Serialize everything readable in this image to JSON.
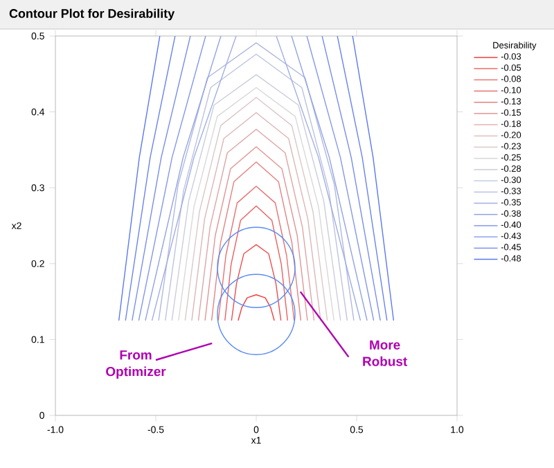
{
  "chart_data": {
    "type": "line",
    "title": "Contour Plot for Desirability",
    "xlabel": "x1",
    "ylabel": "x2",
    "legend_title": "Desirability",
    "legend": "right",
    "xlim": [
      -1,
      1
    ],
    "ylim": [
      0,
      0.5
    ],
    "xticks": [
      {
        "value": -1,
        "label": "-1.0"
      },
      {
        "value": -0.5,
        "label": "-0.5"
      },
      0,
      0.5,
      {
        "value": 1,
        "label": "1.0"
      }
    ],
    "yticks": [
      0,
      0.1,
      0.2,
      0.3,
      0.4,
      0.5
    ],
    "annotations": [
      "From Optimizer",
      {
        "text": "More Robust",
        "x": 0.22,
        "y": 0.163
      }
    ],
    "series": [
      {
        "name": "-0.03",
        "color": "#f03c3c",
        "x": [
          -0.09,
          -0.072,
          -0.045,
          0,
          0.045,
          0.072,
          0.09
        ],
        "values": [
          0.125,
          0.142,
          0.155,
          0.159,
          0.155,
          0.142,
          0.125
        ]
      },
      {
        "name": "-0.05",
        "color": "#ed4d4d",
        "x": [
          -0.123,
          -0.098,
          -0.062,
          0,
          0.062,
          0.098,
          0.123
        ],
        "values": [
          0.125,
          0.174,
          0.213,
          0.225,
          0.213,
          0.174,
          0.125
        ]
      },
      {
        "name": "-0.08",
        "color": "#eb5f5f",
        "x": [
          -0.156,
          -0.125,
          -0.078,
          0,
          0.078,
          0.125,
          0.156
        ],
        "values": [
          0.125,
          0.199,
          0.257,
          0.276,
          0.257,
          0.199,
          0.125
        ]
      },
      {
        "name": "-0.10",
        "color": "#e87070",
        "x": [
          -0.189,
          -0.151,
          -0.095,
          0,
          0.095,
          0.151,
          0.189
        ],
        "values": [
          0.125,
          0.211,
          0.28,
          0.302,
          0.28,
          0.211,
          0.125
        ]
      },
      {
        "name": "-0.13",
        "color": "#e58181",
        "x": [
          -0.222,
          -0.178,
          -0.111,
          0,
          0.111,
          0.178,
          0.222
        ],
        "values": [
          0.125,
          0.227,
          0.308,
          0.334,
          0.308,
          0.227,
          0.125
        ]
      },
      {
        "name": "-0.15",
        "color": "#e39393",
        "x": [
          -0.255,
          -0.204,
          -0.128,
          0,
          0.128,
          0.204,
          0.255
        ],
        "values": [
          0.125,
          0.237,
          0.325,
          0.354,
          0.325,
          0.237,
          0.125
        ]
      },
      {
        "name": "-0.18",
        "color": "#e0a4a4",
        "x": [
          -0.288,
          -0.23,
          -0.144,
          0,
          0.144,
          0.23,
          0.288
        ],
        "values": [
          0.125,
          0.248,
          0.346,
          0.377,
          0.346,
          0.248,
          0.125
        ]
      },
      {
        "name": "-0.20",
        "color": "#ddb5b5",
        "x": [
          -0.321,
          -0.257,
          -0.161,
          0,
          0.161,
          0.257,
          0.321
        ],
        "values": [
          0.125,
          0.259,
          0.365,
          0.399,
          0.365,
          0.259,
          0.125
        ]
      },
      {
        "name": "-0.23",
        "color": "#dbc7c7",
        "x": [
          -0.354,
          -0.283,
          -0.177,
          0,
          0.177,
          0.283,
          0.354
        ],
        "values": [
          0.125,
          0.268,
          0.382,
          0.419,
          0.382,
          0.268,
          0.125
        ]
      },
      {
        "name": "-0.25",
        "color": "#d8d8d8",
        "x": [
          -0.387,
          -0.31,
          -0.194,
          0,
          0.194,
          0.31,
          0.387
        ],
        "values": [
          0.125,
          0.275,
          0.394,
          0.432,
          0.394,
          0.275,
          0.125
        ]
      },
      {
        "name": "-0.28",
        "color": "#cacddb",
        "x": [
          -0.42,
          -0.336,
          -0.21,
          0,
          0.21,
          0.336,
          0.42
        ],
        "values": [
          0.125,
          0.283,
          0.409,
          0.449,
          0.409,
          0.283,
          0.125
        ]
      },
      {
        "name": "-0.30",
        "color": "#bcc3dd",
        "x": [
          -0.453,
          -0.362,
          -0.227,
          0,
          0.227,
          0.362,
          0.453
        ],
        "values": [
          0.125,
          0.296,
          0.432,
          0.476,
          0.432,
          0.296,
          0.125
        ]
      },
      {
        "name": "-0.33",
        "color": "#aeb8e0",
        "x": [
          -0.486,
          -0.389,
          -0.243,
          0,
          0.243,
          0.389,
          0.486
        ],
        "values": [
          0.125,
          0.304,
          0.445,
          0.491,
          0.445,
          0.304,
          0.125
        ]
      },
      {
        "name": "-0.35",
        "color": "#a0ade3",
        "x": [
          -0.519,
          -0.31,
          -0.1,
          0,
          0.1,
          0.31,
          0.519
        ],
        "values": [
          0.125,
          0.34,
          0.5,
          null,
          0.5,
          0.34,
          0.125
        ]
      },
      {
        "name": "-0.38",
        "color": "#92a3e5",
        "x": [
          -0.552,
          -0.364,
          -0.176,
          0,
          0.176,
          0.364,
          0.552
        ],
        "values": [
          0.125,
          0.34,
          0.5,
          null,
          0.5,
          0.34,
          0.125
        ]
      },
      {
        "name": "-0.40",
        "color": "#8498e8",
        "x": [
          -0.585,
          -0.419,
          -0.252,
          0,
          0.252,
          0.419,
          0.585
        ],
        "values": [
          0.125,
          0.34,
          0.5,
          null,
          0.5,
          0.34,
          0.125
        ]
      },
      {
        "name": "-0.43",
        "color": "#768deb",
        "x": [
          -0.618,
          -0.473,
          -0.328,
          0,
          0.328,
          0.473,
          0.618
        ],
        "values": [
          0.125,
          0.34,
          0.5,
          null,
          0.5,
          0.34,
          0.125
        ]
      },
      {
        "name": "-0.45",
        "color": "#6883ed",
        "x": [
          -0.651,
          -0.528,
          -0.404,
          0,
          0.404,
          0.528,
          0.651
        ],
        "values": [
          0.125,
          0.34,
          0.5,
          null,
          0.5,
          0.34,
          0.125
        ]
      },
      {
        "name": "-0.48",
        "color": "#5a78f0",
        "x": [
          -0.684,
          -0.582,
          -0.48,
          0,
          0.48,
          0.582,
          0.684
        ],
        "values": [
          0.125,
          0.34,
          0.5,
          null,
          0.5,
          0.34,
          0.125
        ]
      }
    ]
  }
}
